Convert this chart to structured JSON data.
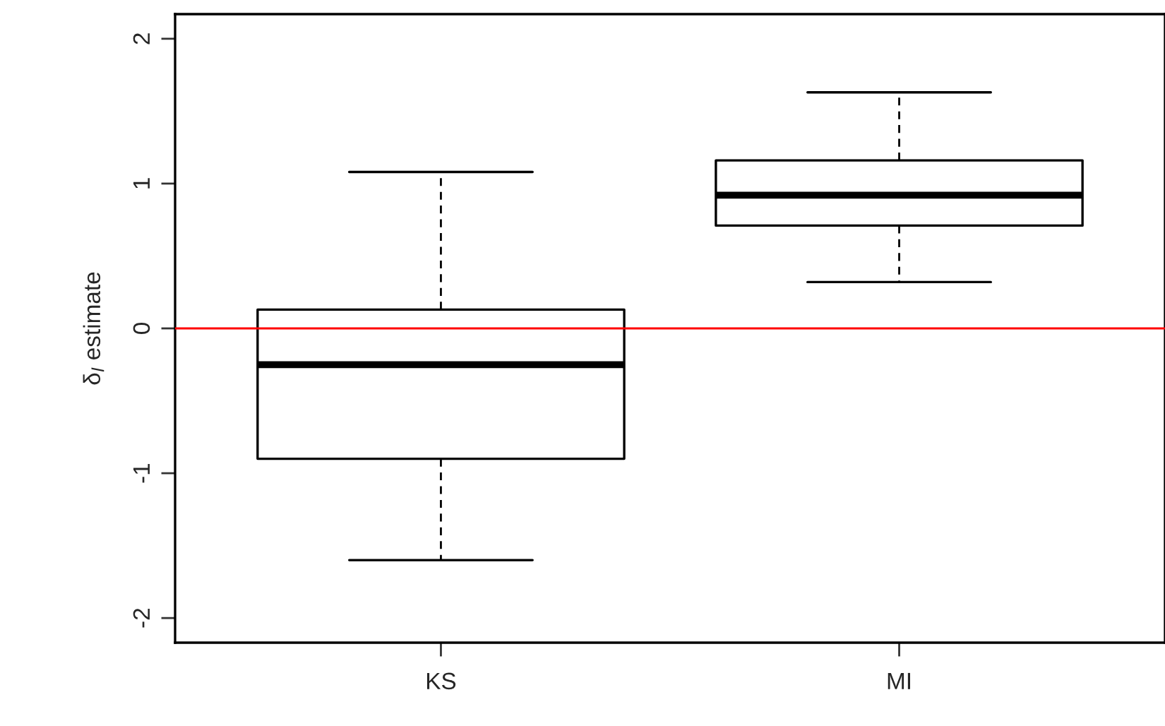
{
  "chart_data": {
    "type": "box",
    "ylabel": "δ$_{l}$ estimate",
    "categories": [
      "KS",
      "MI"
    ],
    "boxes": [
      {
        "low": -1.6,
        "q1": -0.9,
        "median": -0.25,
        "q3": 0.13,
        "high": 1.08
      },
      {
        "low": 0.32,
        "q1": 0.71,
        "median": 0.92,
        "q3": 1.16,
        "high": 1.63
      }
    ],
    "ylim": [
      -2.17,
      2.17
    ],
    "yticks": [
      -2,
      -1,
      0,
      1,
      2
    ],
    "ref_lines": [
      {
        "axis": "y",
        "value": 0,
        "color": "#ff0000"
      }
    ],
    "grid": false,
    "legend": false
  }
}
